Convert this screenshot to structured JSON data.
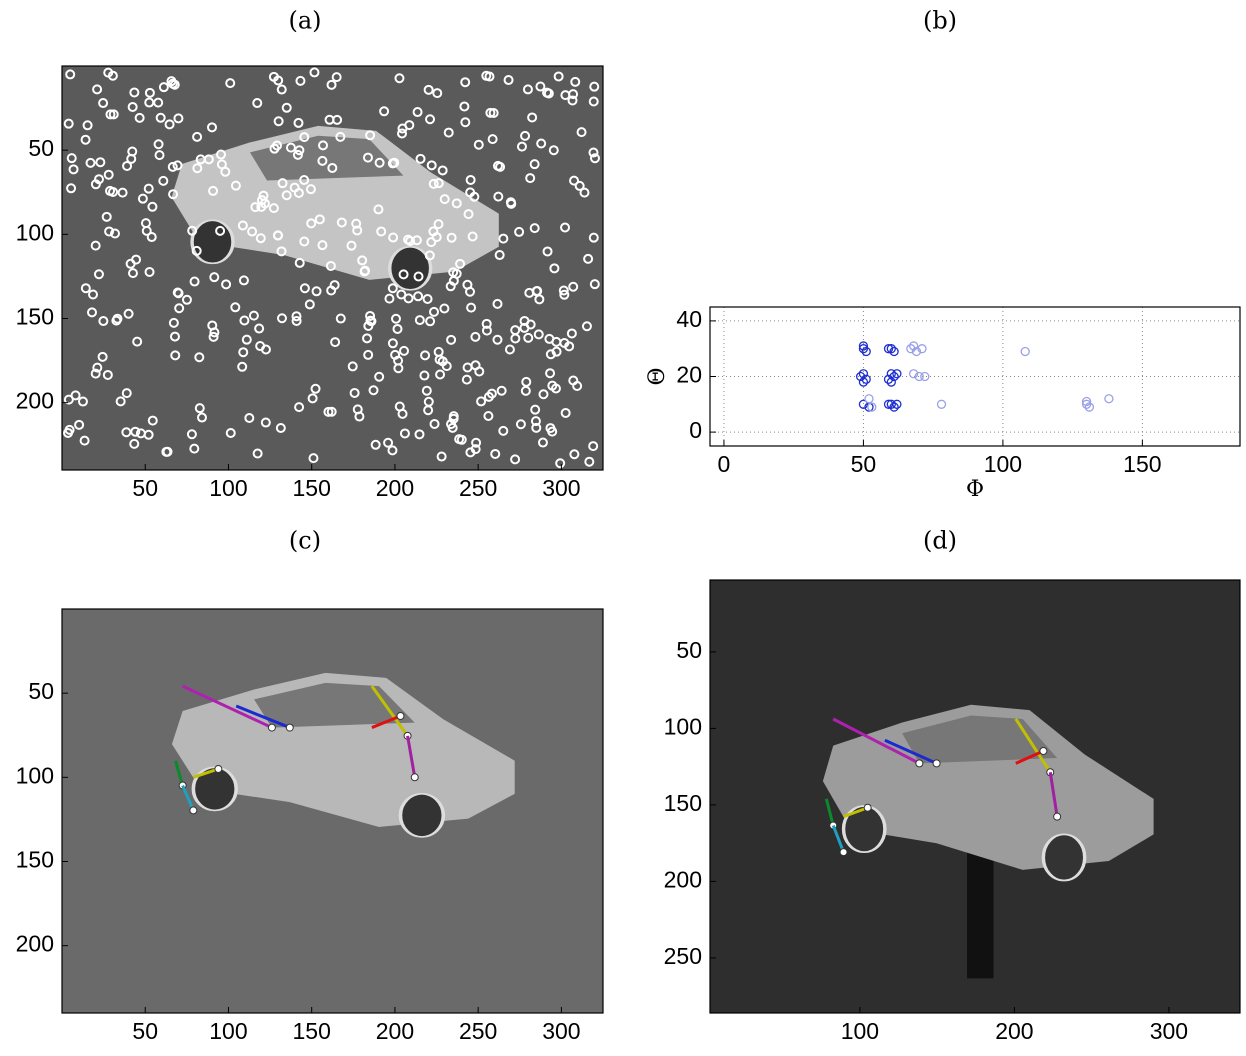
{
  "chart_data": [
    {
      "type": "image",
      "title": "(a)",
      "background": "#5a5a5a",
      "xlim": [
        0,
        325
      ],
      "ylim": [
        240,
        0
      ],
      "xticks": [
        50,
        100,
        150,
        200,
        250,
        300
      ],
      "yticks": [
        50,
        100,
        150,
        200
      ]
    },
    {
      "type": "scatter",
      "title": "(b)",
      "xlabel": "Φ",
      "ylabel": "Θ",
      "xlim": [
        -5,
        185
      ],
      "ylim": [
        -5,
        45
      ],
      "xticks": [
        0,
        50,
        100,
        150
      ],
      "yticks": [
        0,
        20,
        40
      ],
      "grid": true,
      "series": [
        {
          "color": "#1f2fd0",
          "x": [
            50,
            50,
            51,
            50,
            49,
            51,
            50,
            50,
            52,
            60,
            61,
            59,
            60,
            61,
            59,
            60,
            62,
            60,
            61,
            62,
            59
          ],
          "values": [
            30,
            31,
            29,
            21,
            20,
            19,
            18,
            10,
            9,
            30,
            29,
            30,
            21,
            20,
            19,
            18,
            21,
            10,
            9,
            10,
            10
          ]
        },
        {
          "color": "#9aa0e8",
          "x": [
            68,
            69,
            71,
            67,
            70,
            72,
            68,
            52,
            53,
            78,
            108,
            130,
            131,
            130,
            138
          ],
          "values": [
            31,
            29,
            30,
            30,
            20,
            20,
            21,
            12,
            9,
            10,
            29,
            11,
            9,
            10,
            12
          ]
        }
      ]
    },
    {
      "type": "image",
      "title": "(c)",
      "background": "#6a6a6a",
      "xlim": [
        0,
        325
      ],
      "ylim": [
        240,
        0
      ],
      "xticks": [
        50,
        100,
        150,
        200,
        250,
        300
      ],
      "yticks": [
        50,
        100,
        150,
        200
      ]
    },
    {
      "type": "image",
      "title": "(d)",
      "background": "#2e2e2e",
      "xlim": [
        3,
        346
      ],
      "ylim": [
        286,
        3
      ],
      "xticks": [
        100,
        200,
        300
      ],
      "yticks": [
        50,
        100,
        150,
        200,
        250
      ]
    }
  ]
}
